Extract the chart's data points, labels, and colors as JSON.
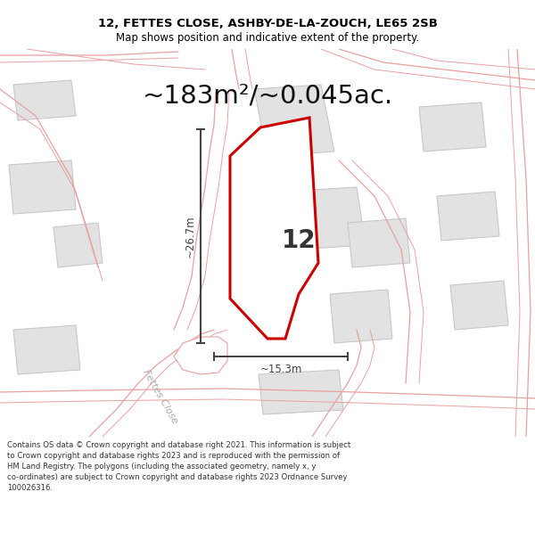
{
  "title_line1": "12, FETTES CLOSE, ASHBY-DE-LA-ZOUCH, LE65 2SB",
  "title_line2": "Map shows position and indicative extent of the property.",
  "area_text": "~183m²/~0.045ac.",
  "property_number": "12",
  "dim_vertical": "~26.7m",
  "dim_horizontal": "~15.3m",
  "street_label": "Fettes Close",
  "footer_text": "Contains OS data © Crown copyright and database right 2021. This information is subject to Crown copyright and database rights 2023 and is reproduced with the permission of HM Land Registry. The polygons (including the associated geometry, namely x, y co-ordinates) are subject to Crown copyright and database rights 2023 Ordnance Survey 100026316.",
  "bg_color": "#ffffff",
  "map_bg": "#f7f4f4",
  "road_edge": "#e8a0a0",
  "bld_fill": "#e2e2e2",
  "bld_out": "#c8c8c8",
  "prop_fill": "#ffffff",
  "prop_outline": "#cc0000",
  "dim_color": "#444444",
  "title_color": "#000000",
  "footer_color": "#333333",
  "area_color": "#111111",
  "num_color": "#333333",
  "street_color": "#aaaaaa"
}
